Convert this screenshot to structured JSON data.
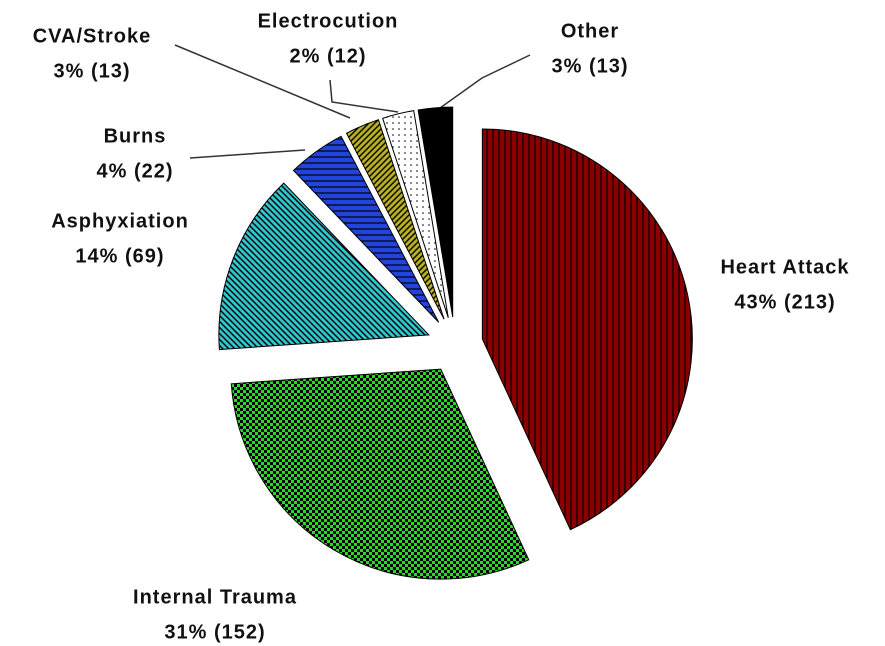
{
  "chart_data": {
    "type": "pie",
    "categories": [
      "Heart Attack",
      "Internal Trauma",
      "Asphyxiation",
      "Burns",
      "CVA/Stroke",
      "Electrocution",
      "Other"
    ],
    "values": [
      213,
      152,
      69,
      22,
      13,
      12,
      13
    ],
    "value_labels": [
      "43% (213)",
      "31% (152)",
      "14% (69)",
      "4% (22)",
      "3% (13)",
      "2% (12)",
      "3% (13)"
    ],
    "colors": [
      "#8b0000",
      "#22dd22",
      "#33c4cc",
      "#2244dd",
      "#b8b020",
      "#ffffff",
      "#000000"
    ]
  }
}
